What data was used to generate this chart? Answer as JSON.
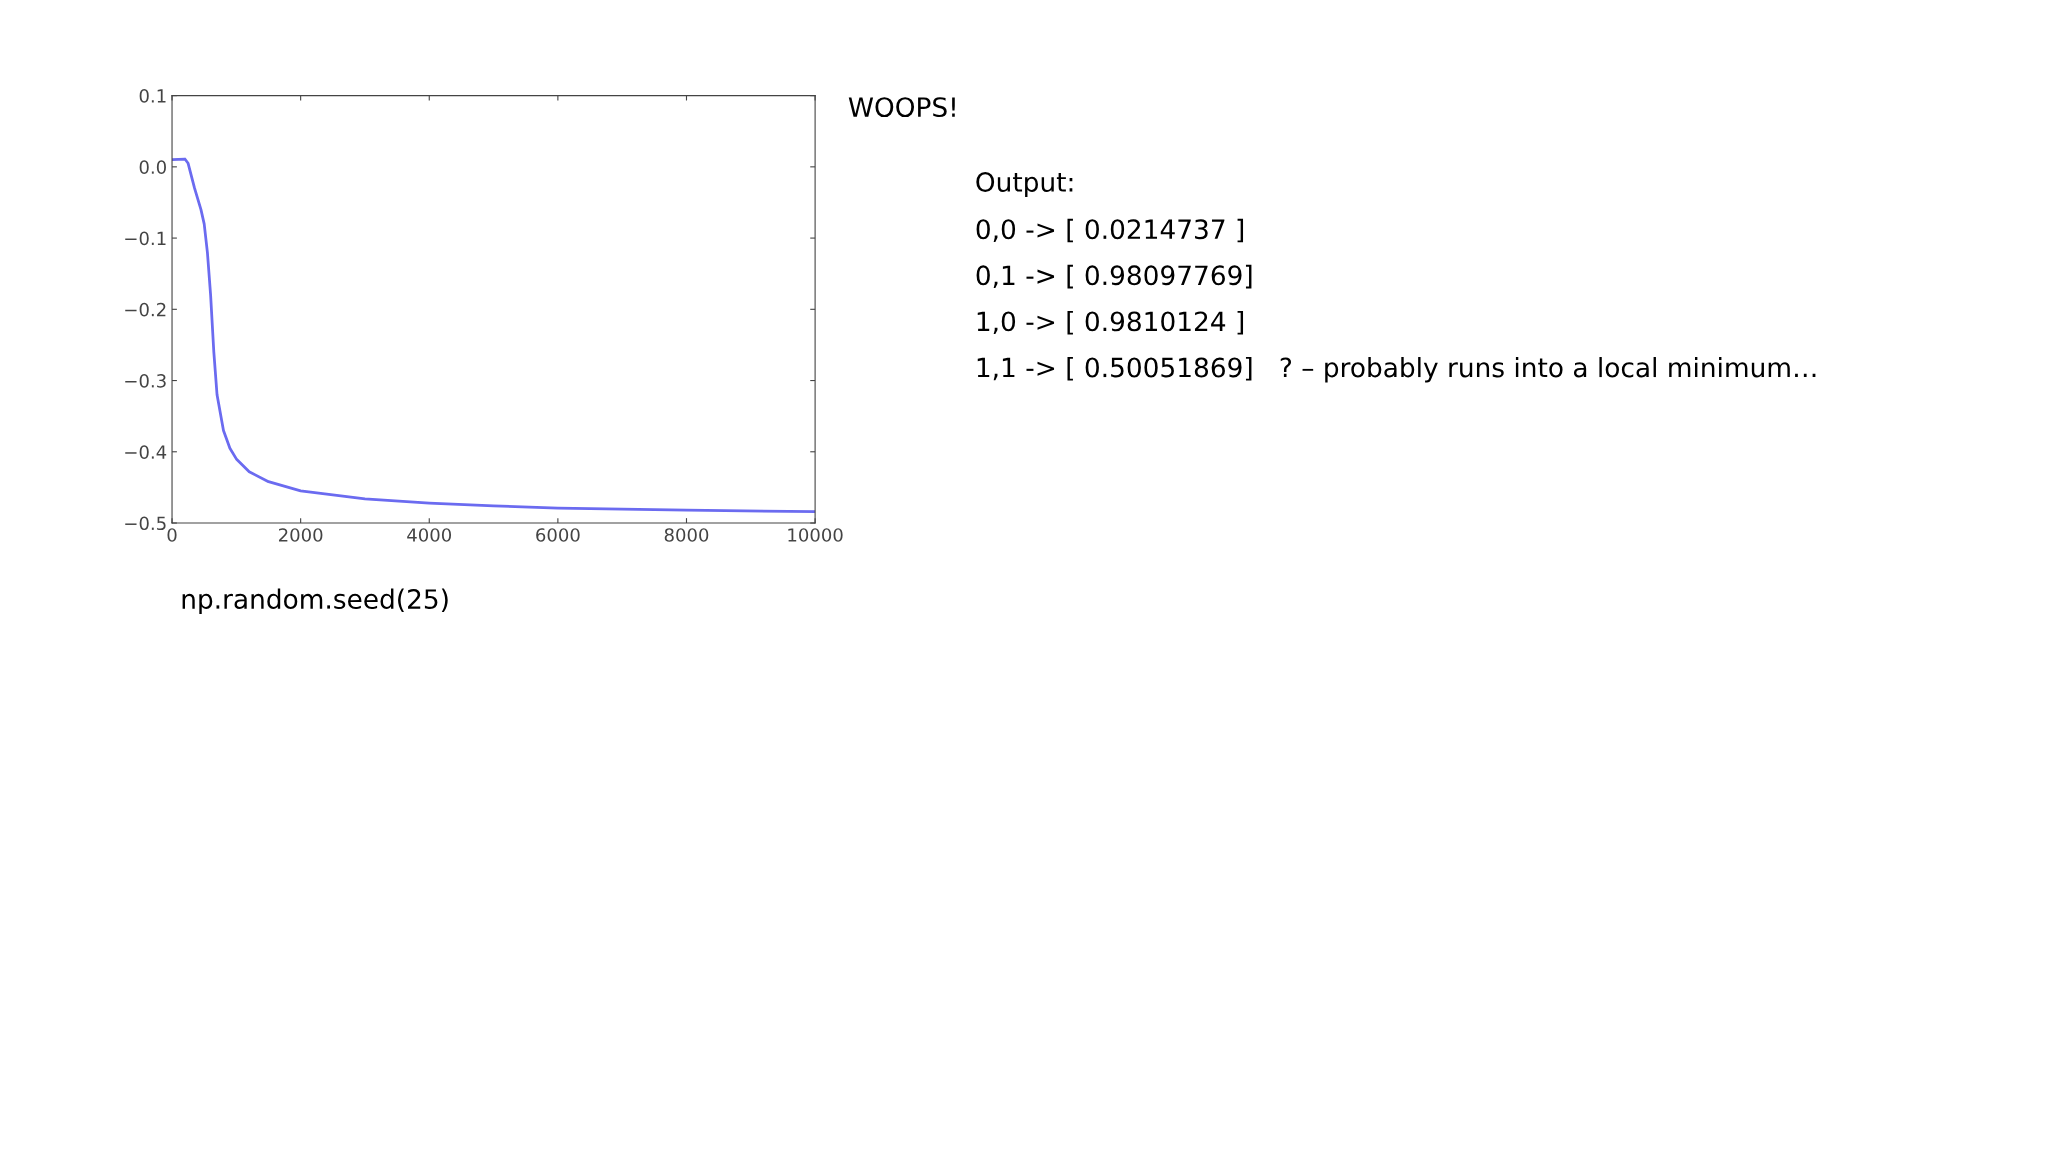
{
  "chart_data": {
    "type": "line",
    "x": [
      0,
      200,
      250,
      350,
      450,
      500,
      550,
      600,
      650,
      700,
      800,
      900,
      1000,
      1200,
      1500,
      2000,
      3000,
      4000,
      5000,
      6000,
      8000,
      10000
    ],
    "series": [
      {
        "color": "#6b6bf0",
        "values": [
          0.01,
          0.011,
          0.005,
          -0.03,
          -0.06,
          -0.08,
          -0.12,
          -0.18,
          -0.26,
          -0.32,
          -0.37,
          -0.395,
          -0.41,
          -0.428,
          -0.442,
          -0.455,
          -0.466,
          -0.472,
          -0.476,
          -0.479,
          -0.482,
          -0.484
        ]
      }
    ],
    "xlim": [
      0,
      10000
    ],
    "xticks": [
      0,
      2000,
      4000,
      6000,
      8000,
      10000
    ],
    "ylim": [
      -0.5,
      0.1
    ],
    "yticks": [
      {
        "value": -0.5,
        "label": "−0.5"
      },
      {
        "value": -0.4,
        "label": "−0.4"
      },
      {
        "value": -0.3,
        "label": "−0.3"
      },
      {
        "value": -0.2,
        "label": "−0.2"
      },
      {
        "value": -0.1,
        "label": "−0.1"
      },
      {
        "value": 0.0,
        "label": "0.0"
      },
      {
        "value": 0.1,
        "label": "0.1"
      }
    ],
    "grid": false,
    "annotations": [
      "WOOPS!",
      "Output:",
      "0,0 -> [ 0.0214737 ]",
      "0,1 -> [ 0.98097769]",
      "1,0 -> [ 0.9810124 ]",
      "1,1 -> [ 0.50051869]   ? – probably runs into a local minimum…",
      "np.random.seed(25)"
    ]
  }
}
